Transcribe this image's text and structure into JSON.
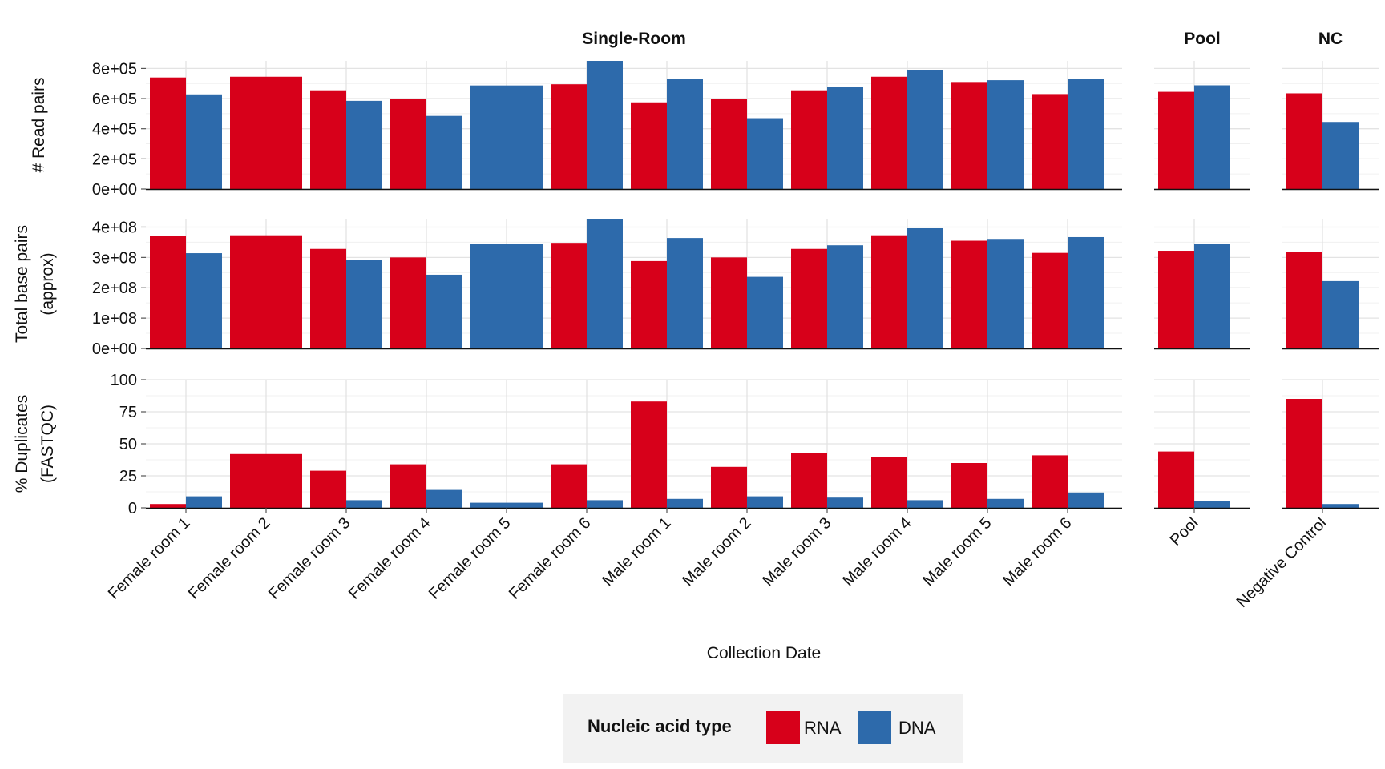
{
  "chart_data": {
    "type": "bar",
    "title": "",
    "xlabel": "Collection Date",
    "facets": [
      {
        "title": "Single-Room",
        "categories": [
          "Female room 1",
          "Female room 2",
          "Female room 3",
          "Female room 4",
          "Female room 5",
          "Female room 6",
          "Male room 1",
          "Male room 2",
          "Male room 3",
          "Male room 4",
          "Male room 5",
          "Male room 6"
        ]
      },
      {
        "title": "Pool",
        "categories": [
          "Pool"
        ]
      },
      {
        "title": "NC",
        "categories": [
          "Negative Control"
        ]
      }
    ],
    "panels": [
      {
        "ylabel_lines": [
          "# Read pairs"
        ],
        "ylim": [
          0,
          850000
        ],
        "ticks": [
          0,
          200000,
          400000,
          600000,
          800000
        ],
        "tick_labels": [
          "0e+00",
          "2e+05",
          "4e+05",
          "6e+05",
          "8e+05"
        ]
      },
      {
        "ylabel_lines": [
          "Total base pairs",
          "(approx)"
        ],
        "ylim": [
          0,
          425000000
        ],
        "ticks": [
          0,
          100000000,
          200000000,
          300000000,
          400000000
        ],
        "tick_labels": [
          "0e+00",
          "1e+08",
          "2e+08",
          "3e+08",
          "4e+08"
        ]
      },
      {
        "ylabel_lines": [
          "% Duplicates",
          "(FASTQC)"
        ],
        "ylim": [
          0,
          100
        ],
        "ticks": [
          0,
          25,
          50,
          75,
          100
        ],
        "tick_labels": [
          "0",
          "25",
          "50",
          "75",
          "100"
        ]
      }
    ],
    "series": [
      {
        "name": "RNA",
        "color": "#d7001a",
        "read_pairs": [
          740000,
          745000,
          655000,
          600000,
          null,
          695000,
          575000,
          600000,
          655000,
          745000,
          710000,
          630000,
          645000,
          635000
        ],
        "total_bp": [
          370000000,
          373000000,
          328000000,
          300000000,
          null,
          348000000,
          288000000,
          300000000,
          328000000,
          373000000,
          355000000,
          315000000,
          322000000,
          317000000
        ],
        "dup_pct": [
          3,
          42,
          29,
          34,
          null,
          34,
          83,
          32,
          43,
          40,
          35,
          41,
          44,
          85
        ]
      },
      {
        "name": "DNA",
        "color": "#2d6aab",
        "read_pairs": [
          628000,
          null,
          585000,
          485000,
          687000,
          850000,
          728000,
          470000,
          680000,
          790000,
          722000,
          733000,
          688000,
          445000
        ],
        "total_bp": [
          314000000,
          null,
          292000000,
          243000000,
          344000000,
          425000000,
          364000000,
          236000000,
          340000000,
          396000000,
          361000000,
          367000000,
          344000000,
          222000000
        ],
        "dup_pct": [
          9,
          null,
          6,
          14,
          4,
          6,
          7,
          9,
          8,
          6,
          7,
          12,
          5,
          3
        ]
      }
    ],
    "legend": {
      "title": "Nucleic acid type",
      "position": "bottom",
      "entries": [
        "RNA",
        "DNA"
      ]
    },
    "grid": true
  }
}
